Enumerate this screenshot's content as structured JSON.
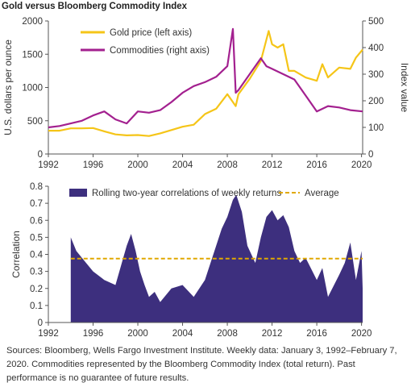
{
  "title": "Gold versus Bloomberg Commodity Index",
  "source_note": "Sources: Bloomberg, Wells Fargo Investment Institute. Weekly data: January 3, 1992–February 7, 2020. Commodities represented by the Bloomberg Commodity Index (total return). Past performance is no guarantee of future results.",
  "colors": {
    "gold": "#f5c518",
    "commodities": "#a3208f",
    "correlation": "#3d2f7e",
    "average": "#e0a800",
    "axis": "#555555"
  },
  "chart_data": [
    {
      "type": "line",
      "xlabel": "",
      "ylabel": "U.S. dollars per ounce",
      "y2label": "Index value",
      "xlim": [
        1992,
        2020.1
      ],
      "ylim": [
        0,
        2000
      ],
      "y2lim": [
        0,
        500
      ],
      "x_ticks": [
        "1992",
        "1996",
        "2000",
        "2004",
        "2008",
        "2012",
        "2016",
        "2020"
      ],
      "y_ticks": [
        "0",
        "500",
        "1000",
        "1500",
        "2000"
      ],
      "y2_ticks": [
        "0",
        "100",
        "200",
        "300",
        "400",
        "500"
      ],
      "series": [
        {
          "name": "Gold price (left axis)",
          "axis": "left",
          "x": [
            1992,
            1993,
            1994,
            1995,
            1996,
            1997,
            1998,
            1999,
            2000,
            2001,
            2002,
            2003,
            2004,
            2005,
            2006,
            2007,
            2008,
            2008.75,
            2009,
            2010,
            2011,
            2011.7,
            2012,
            2012.5,
            2013,
            2013.5,
            2014,
            2015,
            2016,
            2016.5,
            2017,
            2018,
            2019,
            2019.5,
            2020.1
          ],
          "values": [
            350,
            350,
            385,
            385,
            390,
            340,
            295,
            280,
            285,
            270,
            310,
            360,
            410,
            440,
            600,
            680,
            900,
            720,
            900,
            1130,
            1400,
            1850,
            1650,
            1600,
            1650,
            1250,
            1250,
            1150,
            1100,
            1350,
            1150,
            1300,
            1280,
            1450,
            1570
          ]
        },
        {
          "name": "Commodities (right axis)",
          "axis": "right",
          "x": [
            1992,
            1993,
            1994,
            1995,
            1996,
            1997,
            1998,
            1999,
            2000,
            2001,
            2002,
            2003,
            2004,
            2005,
            2006,
            2007,
            2008,
            2008.5,
            2008.75,
            2009,
            2010,
            2011,
            2011.5,
            2012,
            2013,
            2014,
            2015,
            2016,
            2017,
            2018,
            2019,
            2020.1
          ],
          "values": [
            100,
            105,
            115,
            125,
            145,
            160,
            130,
            115,
            160,
            155,
            165,
            195,
            230,
            255,
            270,
            290,
            330,
            470,
            230,
            240,
            300,
            360,
            330,
            320,
            300,
            280,
            220,
            160,
            180,
            175,
            165,
            160
          ]
        }
      ]
    },
    {
      "type": "area",
      "xlabel": "",
      "ylabel": "Correlation",
      "xlim": [
        1992,
        2020.1
      ],
      "ylim": [
        0,
        0.8
      ],
      "x_ticks": [
        "1992",
        "1996",
        "2000",
        "2004",
        "2008",
        "2012",
        "2016",
        "2020"
      ],
      "y_ticks": [
        "0",
        "0.1",
        "0.2",
        "0.3",
        "0.4",
        "0.5",
        "0.6",
        "0.7",
        "0.8"
      ],
      "series": [
        {
          "name": "Rolling two-year correlations of weekly returns",
          "x": [
            1994,
            1994.5,
            1995,
            1996,
            1997,
            1998,
            1999,
            1999.4,
            1999.8,
            2000.2,
            2000.6,
            2001,
            2001.5,
            2002,
            2003,
            2004,
            2005,
            2006,
            2007,
            2007.5,
            2008,
            2008.5,
            2008.8,
            2009.3,
            2009.8,
            2010.5,
            2011,
            2011.5,
            2012,
            2012.5,
            2013,
            2013.5,
            2014,
            2014.5,
            2015,
            2016,
            2016.5,
            2017,
            2018,
            2018.5,
            2019,
            2019.5,
            2020,
            2020.1
          ],
          "values": [
            0.5,
            0.42,
            0.38,
            0.3,
            0.25,
            0.22,
            0.45,
            0.52,
            0.42,
            0.3,
            0.22,
            0.15,
            0.18,
            0.12,
            0.2,
            0.22,
            0.15,
            0.25,
            0.45,
            0.55,
            0.62,
            0.72,
            0.75,
            0.65,
            0.45,
            0.35,
            0.5,
            0.62,
            0.66,
            0.6,
            0.63,
            0.56,
            0.42,
            0.35,
            0.38,
            0.25,
            0.32,
            0.15,
            0.28,
            0.35,
            0.47,
            0.25,
            0.42,
            0.2
          ]
        },
        {
          "name": "Average",
          "constant": 0.375
        }
      ]
    }
  ]
}
